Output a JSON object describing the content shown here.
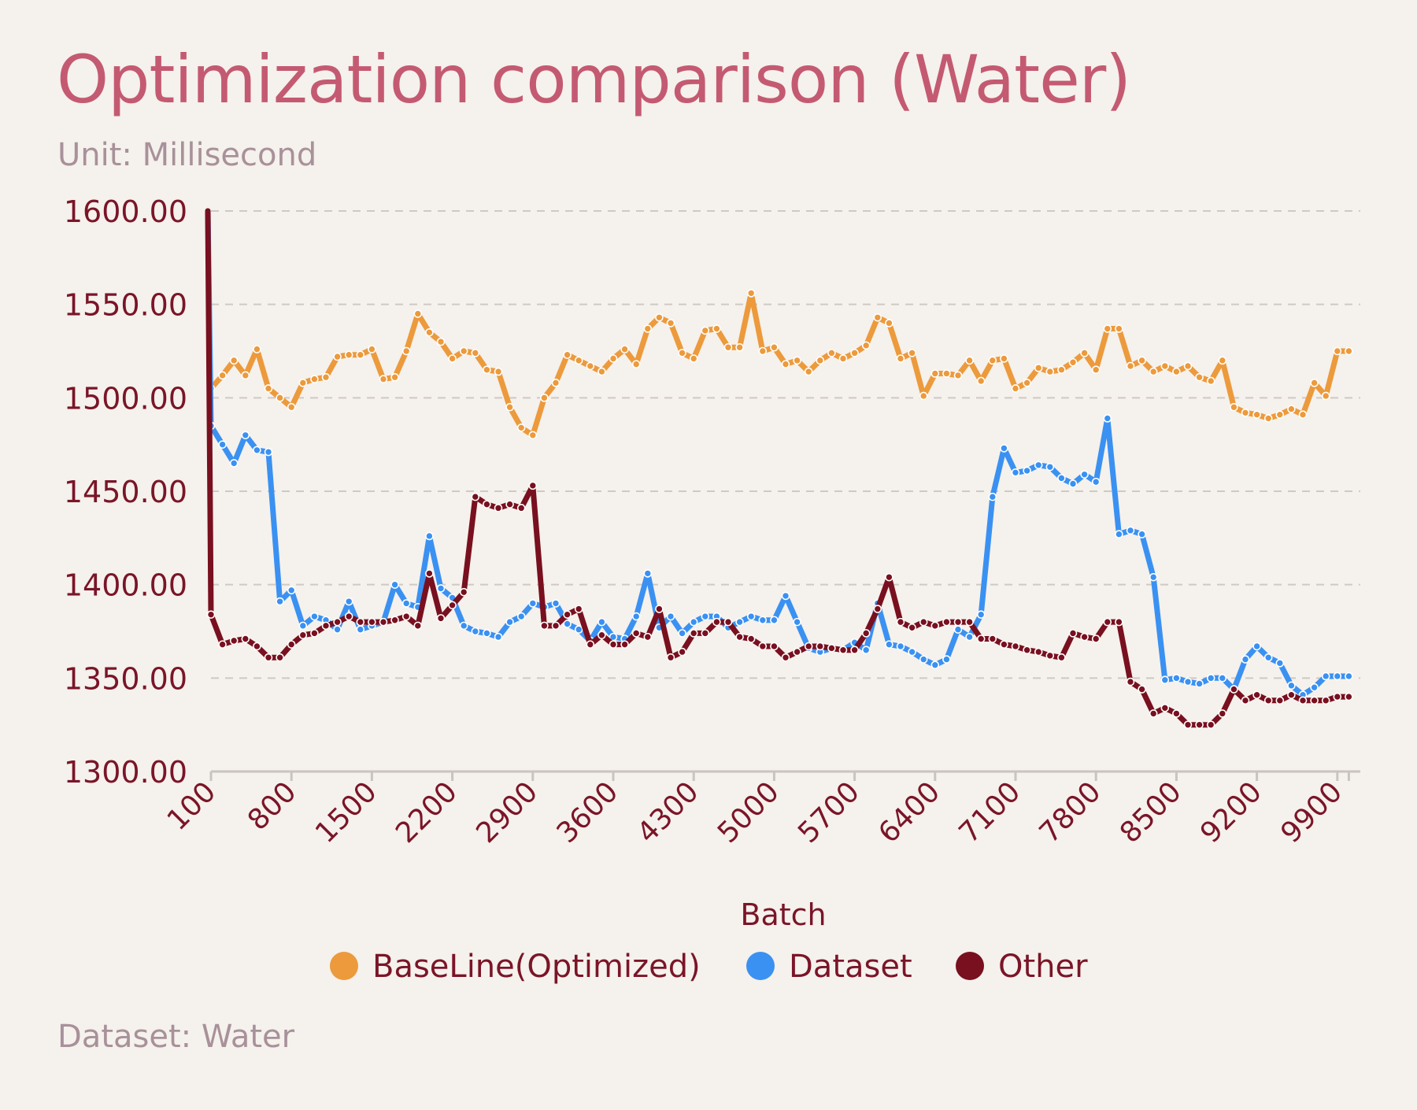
{
  "header": {
    "title": "Optimization comparison (Water)",
    "subtitle": "Unit: Millisecond"
  },
  "footer": {
    "note": "Dataset: Water"
  },
  "chart_data": {
    "type": "line",
    "title": "Optimization comparison (Water)",
    "subtitle": "Unit: Millisecond",
    "xlabel": "Batch",
    "ylabel": "",
    "ylim": [
      1300,
      1600
    ],
    "yticks": [
      "1300.00",
      "1350.00",
      "1400.00",
      "1450.00",
      "1500.00",
      "1550.00",
      "1600.00"
    ],
    "xticks": [
      "100",
      "800",
      "1500",
      "2200",
      "2900",
      "3600",
      "4300",
      "5000",
      "5700",
      "6400",
      "7100",
      "7800",
      "8500",
      "9200",
      "9900"
    ],
    "grid": "horizontal-dashed",
    "legend_position": "bottom",
    "x": [
      100,
      200,
      300,
      400,
      500,
      600,
      700,
      800,
      900,
      1000,
      1100,
      1200,
      1300,
      1400,
      1500,
      1600,
      1700,
      1800,
      1900,
      2000,
      2100,
      2200,
      2300,
      2400,
      2500,
      2600,
      2700,
      2800,
      2900,
      3000,
      3100,
      3200,
      3300,
      3400,
      3500,
      3600,
      3700,
      3800,
      3900,
      4000,
      4100,
      4200,
      4300,
      4400,
      4500,
      4600,
      4700,
      4800,
      4900,
      5000,
      5100,
      5200,
      5300,
      5400,
      5500,
      5600,
      5700,
      5800,
      5900,
      6000,
      6100,
      6200,
      6300,
      6400,
      6500,
      6600,
      6700,
      6800,
      6900,
      7000,
      7100,
      7200,
      7300,
      7400,
      7500,
      7600,
      7700,
      7800,
      7900,
      8000,
      8100,
      8200,
      8300,
      8400,
      8500,
      8600,
      8700,
      8800,
      8900,
      9000,
      9100,
      9200,
      9300,
      9400,
      9500,
      9600,
      9700,
      9800,
      9900,
      10000
    ],
    "series": [
      {
        "name": "BaseLine(Optimized)",
        "color": "#ec9a3c",
        "values": [
          1505,
          1512,
          1520,
          1512,
          1526,
          1505,
          1500,
          1495,
          1508,
          1510,
          1511,
          1522,
          1523,
          1523,
          1526,
          1510,
          1511,
          1525,
          1545,
          1535,
          1530,
          1521,
          1525,
          1524,
          1515,
          1514,
          1495,
          1484,
          1480,
          1500,
          1508,
          1523,
          1520,
          1517,
          1514,
          1521,
          1526,
          1518,
          1537,
          1543,
          1540,
          1524,
          1521,
          1536,
          1537,
          1527,
          1527,
          1556,
          1525,
          1527,
          1518,
          1520,
          1514,
          1520,
          1524,
          1521,
          1524,
          1528,
          1543,
          1540,
          1521,
          1524,
          1501,
          1513,
          1513,
          1512,
          1520,
          1509,
          1520,
          1521,
          1505,
          1508,
          1516,
          1514,
          1515,
          1519,
          1524,
          1515,
          1537,
          1537,
          1517,
          1520,
          1514,
          1517,
          1514,
          1517,
          1511,
          1509,
          1520,
          1495,
          1492,
          1491,
          1489,
          1491,
          1494,
          1491,
          1508,
          1501,
          1525,
          1525
        ]
      },
      {
        "name": "Dataset",
        "color": "#3a91f2",
        "values": [
          1485,
          1475,
          1465,
          1480,
          1472,
          1471,
          1391,
          1397,
          1378,
          1383,
          1381,
          1376,
          1391,
          1376,
          1378,
          1380,
          1400,
          1390,
          1388,
          1426,
          1398,
          1393,
          1378,
          1375,
          1374,
          1372,
          1380,
          1383,
          1390,
          1388,
          1390,
          1379,
          1376,
          1370,
          1380,
          1372,
          1371,
          1383,
          1406,
          1377,
          1383,
          1374,
          1380,
          1383,
          1383,
          1377,
          1380,
          1383,
          1381,
          1381,
          1394,
          1380,
          1366,
          1364,
          1366,
          1365,
          1369,
          1365,
          1390,
          1368,
          1367,
          1364,
          1360,
          1357,
          1360,
          1376,
          1372,
          1384,
          1447,
          1473,
          1460,
          1461,
          1464,
          1463,
          1457,
          1454,
          1459,
          1455,
          1489,
          1427,
          1429,
          1427,
          1404,
          1349,
          1350,
          1348,
          1347,
          1350,
          1350,
          1344,
          1360,
          1367,
          1361,
          1358,
          1346,
          1341,
          1345,
          1351,
          1351,
          1351
        ]
      },
      {
        "name": "Other",
        "color": "#78101f",
        "values": [
          1384,
          1368,
          1370,
          1371,
          1367,
          1361,
          1361,
          1368,
          1373,
          1374,
          1378,
          1380,
          1383,
          1380,
          1380,
          1380,
          1381,
          1383,
          1378,
          1406,
          1382,
          1389,
          1396,
          1447,
          1443,
          1441,
          1443,
          1441,
          1453,
          1378,
          1378,
          1384,
          1387,
          1368,
          1373,
          1368,
          1368,
          1374,
          1372,
          1387,
          1361,
          1364,
          1374,
          1374,
          1380,
          1380,
          1372,
          1371,
          1367,
          1367,
          1361,
          1364,
          1367,
          1367,
          1366,
          1365,
          1365,
          1374,
          1387,
          1404,
          1380,
          1377,
          1380,
          1378,
          1380,
          1380,
          1380,
          1371,
          1371,
          1368,
          1367,
          1365,
          1364,
          1362,
          1361,
          1374,
          1372,
          1371,
          1380,
          1380,
          1348,
          1344,
          1331,
          1334,
          1331,
          1325,
          1325,
          1325,
          1331,
          1344,
          1338,
          1341,
          1338,
          1338,
          1341,
          1338,
          1338,
          1338,
          1340,
          1340
        ]
      }
    ]
  }
}
